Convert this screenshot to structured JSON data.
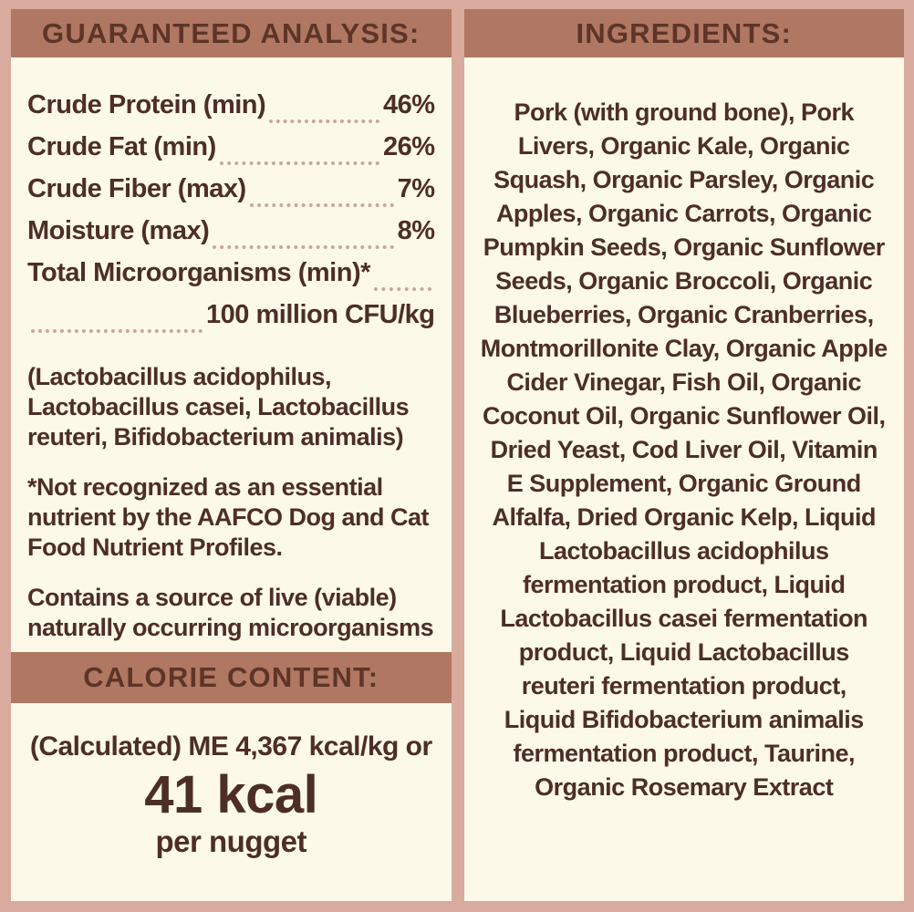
{
  "colors": {
    "background": "#d8ab9e",
    "header_bar": "#b07762",
    "header_text": "#5d3528",
    "panel_bg": "#fdf9e9",
    "text": "#4d2e27",
    "dots": "#c8a79a"
  },
  "guaranteed_analysis": {
    "header": "GUARANTEED ANALYSIS:",
    "rows": [
      {
        "label": "Crude Protein (min)",
        "value": "46%"
      },
      {
        "label": "Crude Fat (min)",
        "value": "26%"
      },
      {
        "label": "Crude Fiber (max)",
        "value": "7%"
      },
      {
        "label": "Moisture (max)",
        "value": "8%"
      }
    ],
    "microorganisms_label": "Total Microorganisms (min)*",
    "microorganisms_value": "100 million CFU/kg",
    "notes": [
      "(Lactobacillus acidophilus, Lactobacillus casei, Lactobacillus reuteri, Bifidobacterium animalis)",
      "*Not recognized as an essential nutrient by the AAFCO Dog and Cat Food Nutrient Profiles.",
      "Contains a source of live (viable) naturally occurring microorganisms"
    ]
  },
  "calorie_content": {
    "header": "CALORIE CONTENT:",
    "line1": "(Calculated) ME 4,367 kcal/kg or",
    "value": "41 kcal",
    "unit": "per nugget"
  },
  "ingredients": {
    "header": "INGREDIENTS:",
    "lines": [
      "Pork (with ground bone), Pork",
      "Livers, Organic Kale, Organic",
      "Squash, Organic Parsley, Organic",
      "Apples, Organic Carrots, Organic",
      "Pumpkin Seeds, Organic Sunflower",
      "Seeds, Organic Broccoli, Organic",
      "Blueberries, Organic Cranberries,",
      "Montmorillonite Clay, Organic Apple",
      "Cider Vinegar, Fish Oil, Organic",
      "Coconut Oil, Organic Sunflower Oil,",
      "Dried Yeast, Cod Liver Oil, Vitamin",
      "E Supplement, Organic Ground",
      "Alfalfa, Dried Organic Kelp, Liquid",
      "Lactobacillus acidophilus",
      "fermentation product, Liquid",
      "Lactobacillus casei fermentation",
      "product, Liquid Lactobacillus",
      "reuteri fermentation product,",
      "Liquid Bifidobacterium animalis",
      "fermentation product, Taurine,",
      "Organic Rosemary Extract"
    ]
  }
}
